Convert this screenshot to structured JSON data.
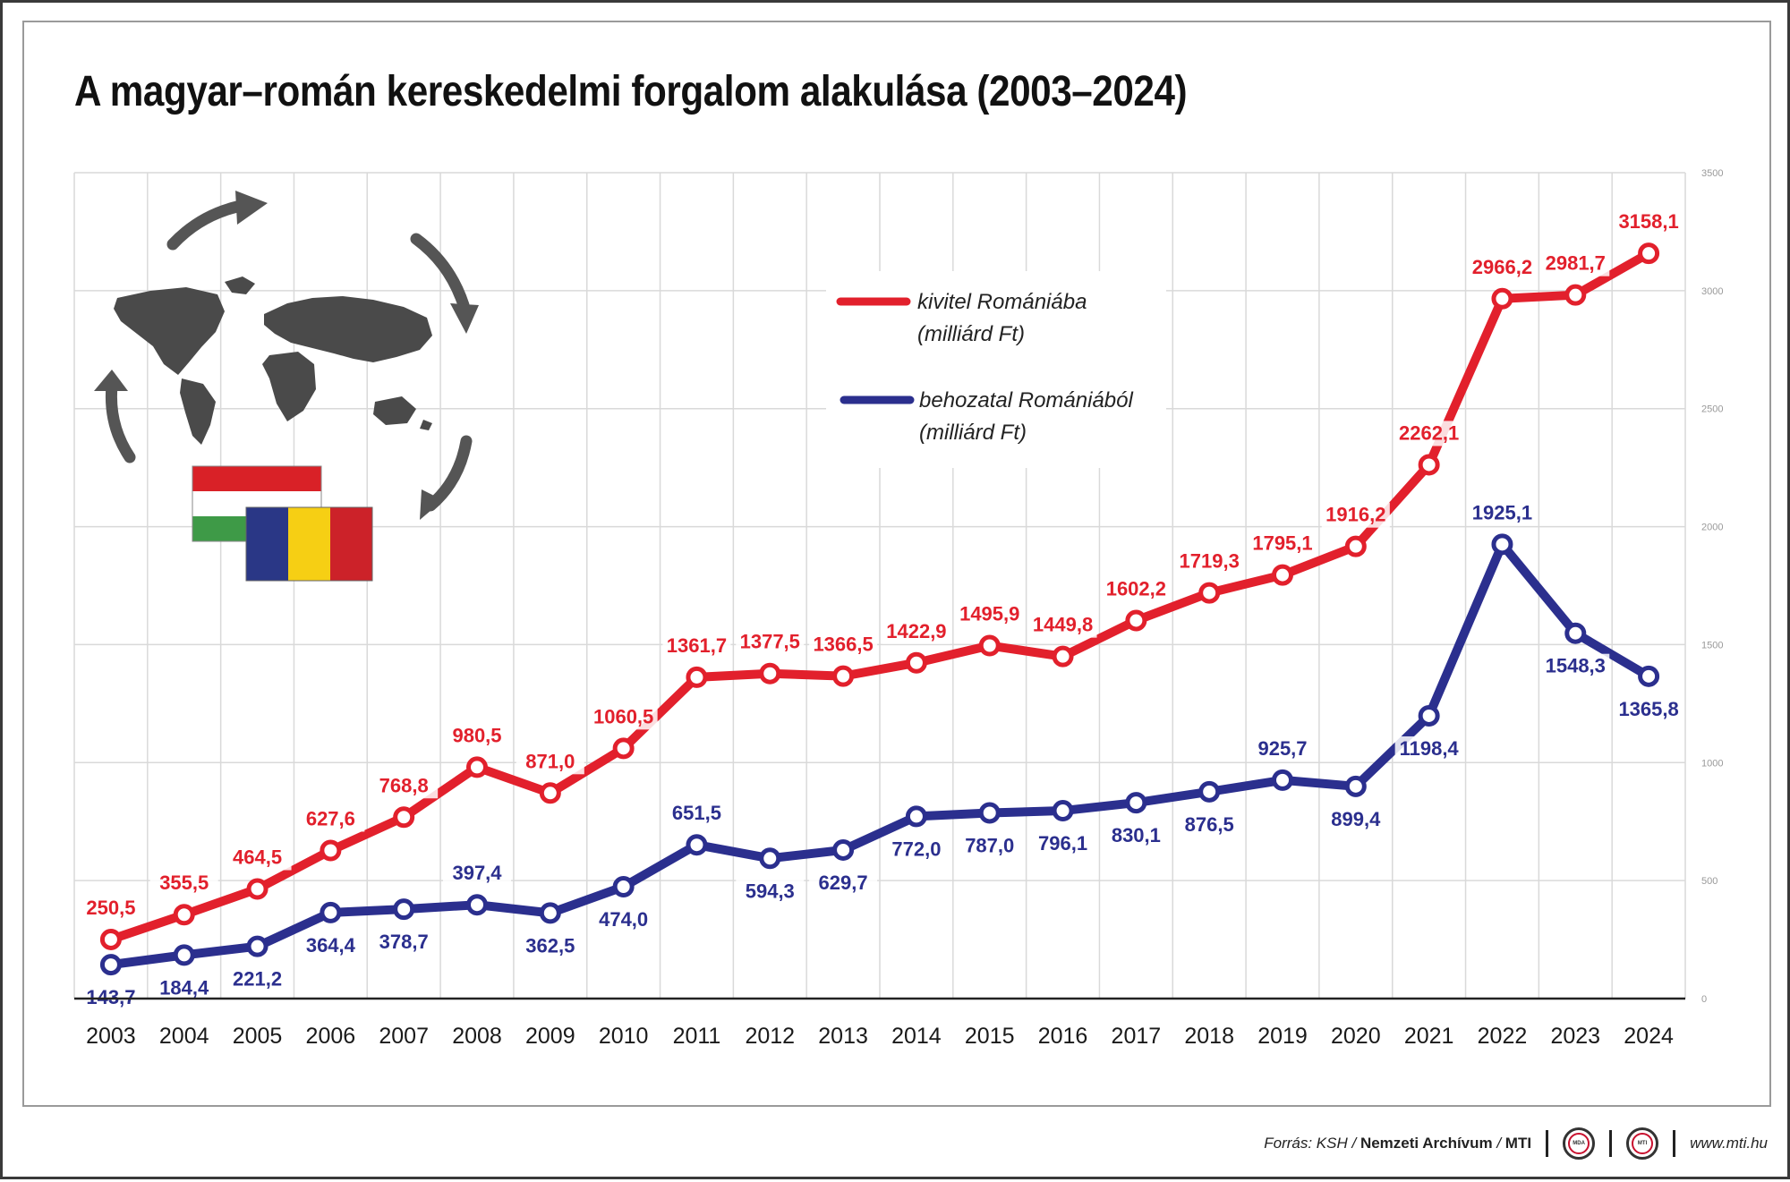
{
  "colors": {
    "export": "#e2202c",
    "import": "#2b2f8e",
    "grid": "#d9d9d9"
  },
  "chart_data": {
    "type": "line",
    "title": "A magyar–román kereskedelmi forgalom alakulása (2003–2024)",
    "categories": [
      "2003",
      "2004",
      "2005",
      "2006",
      "2007",
      "2008",
      "2009",
      "2010",
      "2011",
      "2012",
      "2013",
      "2014",
      "2015",
      "2016",
      "2017",
      "2018",
      "2019",
      "2020",
      "2021",
      "2022",
      "2023",
      "2024"
    ],
    "series": [
      {
        "key": "export",
        "name_line1": "kivitel Romániába",
        "name_line2": "(milliárd Ft)",
        "values": [
          250.5,
          355.5,
          464.5,
          627.6,
          768.8,
          980.5,
          871.0,
          1060.5,
          1361.7,
          1377.5,
          1366.5,
          1422.9,
          1495.9,
          1449.8,
          1602.2,
          1719.3,
          1795.1,
          1916.2,
          2262.1,
          2966.2,
          2981.7,
          3158.1
        ],
        "labels": [
          "250,5",
          "355,5",
          "464,5",
          "627,6",
          "768,8",
          "980,5",
          "871,0",
          "1060,5",
          "1361,7",
          "1377,5",
          "1366,5",
          "1422,9",
          "1495,9",
          "1449,8",
          "1602,2",
          "1719,3",
          "1795,1",
          "1916,2",
          "2262,1",
          "2966,2",
          "2981,7",
          "3158,1"
        ]
      },
      {
        "key": "import",
        "name_line1": "behozatal Romániából",
        "name_line2": "(milliárd Ft)",
        "values": [
          143.7,
          184.4,
          221.2,
          364.4,
          378.7,
          397.4,
          362.5,
          474.0,
          651.5,
          594.3,
          629.7,
          772.0,
          787.0,
          796.1,
          830.1,
          876.5,
          925.7,
          899.4,
          1198.4,
          1925.1,
          1548.3,
          1365.8
        ],
        "labels": [
          "143,7",
          "184,4",
          "221,2",
          "364,4",
          "378,7",
          "397,4",
          "362,5",
          "474,0",
          "651,5",
          "594,3",
          "629,7",
          "772,0",
          "787,0",
          "796,1",
          "830,1",
          "876,5",
          "925,7",
          "899,4",
          "1198,4",
          "1925,1",
          "1548,3",
          "1365,8"
        ]
      }
    ],
    "yticks": [
      0,
      500,
      1000,
      1500,
      2000,
      2500,
      3000,
      3500
    ],
    "ylim": [
      0,
      3500
    ],
    "grid": true,
    "legend_position": "center-top"
  },
  "footer": {
    "source_prefix": "Forrás: KSH / ",
    "archive": "Nemzeti Archívum",
    "slash": " / ",
    "agency": "MTI",
    "logo1": "MDA",
    "logo2": "MTI",
    "website": "www.mti.hu"
  }
}
